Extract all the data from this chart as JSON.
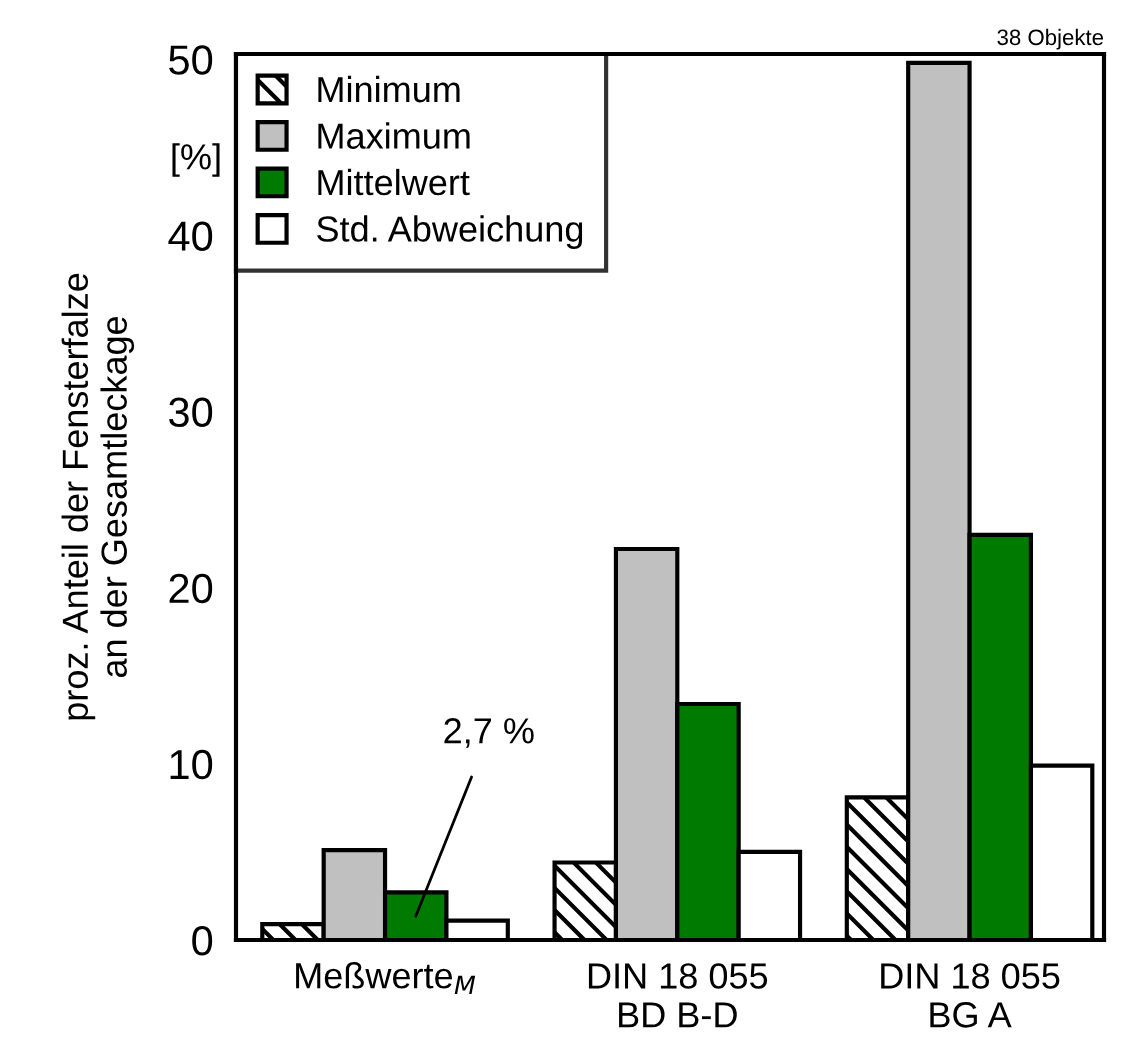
{
  "chart_data": {
    "type": "bar",
    "ylabel": "proz. Anteil der Fensterfalze\nan der Gesamtleckage",
    "categories": [
      "Meßwerte$_{M}$",
      "DIN 18 055\nBD B-D",
      "DIN 18 055\nBG A"
    ],
    "series": [
      {
        "name": "Minimum",
        "color": "#000000",
        "values": [
          0.9,
          4.4,
          8.1
        ]
      },
      {
        "name": "Maximum",
        "color": "#c0c0c0",
        "values": [
          5.1,
          22.2,
          49.8
        ]
      },
      {
        "name": "Mittelwert",
        "color": "#007a00",
        "values": [
          2.7,
          13.4,
          23.0
        ]
      },
      {
        "name": "Std. Abweichung",
        "color": "#ffffff",
        "values": [
          1.1,
          5.0,
          9.9
        ]
      }
    ],
    "ylim": [
      0,
      50.3
    ],
    "yticks": [
      0,
      10,
      20,
      30,
      40,
      50
    ],
    "annotations": [
      "[%]",
      "38 Objekte",
      "2,7 %"
    ],
    "legend": "top left",
    "grid": false
  }
}
